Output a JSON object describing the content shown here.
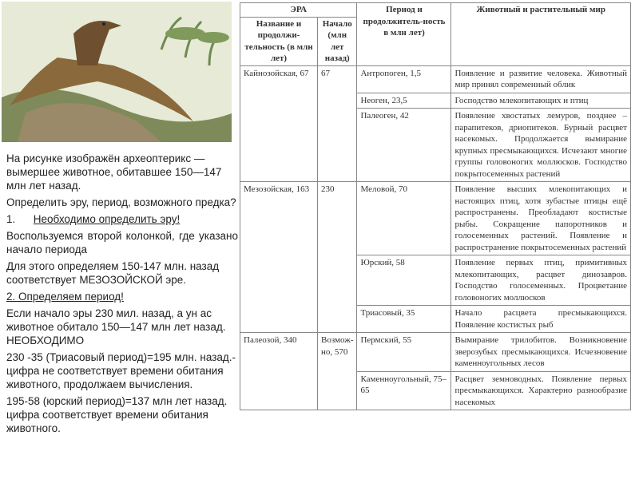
{
  "image": {
    "subject": "archaeopteryx illustration",
    "colors": {
      "sky": "#e8ecd8",
      "bird": "#8a6a3c",
      "rock": "#7f8a5a"
    }
  },
  "text": {
    "p1": "На рисунке изображён археоптерикс — вымершее животное, обитавшее 150—147 млн лет назад.",
    "p2": "Определить эру, период, возможного предка?",
    "step1_num": "1.",
    "step1": "Необходимо определить эру!",
    "p3": "Воспользуемся второй колонкой, где указано начало периода",
    "p4": "Для этого определяем 150-147 млн. назад соответствует МЕЗОЗОЙСКОЙ эре.",
    "step2": "2. Определяем период!",
    "p5": "Если начало эры 230 мил. назад, а ун ас животное обитало 150—147 млн лет назад. НЕОБХОДИМО",
    "p6": "230 -35 (Триасовый период)=195 млн. назад.-цифра не соответствует времени обитания животного, продолжаем вычисления.",
    "p7": "195-58 (юрский период)=137 млн лет назад. цифра соответствует времени обитания животного."
  },
  "table": {
    "headers": {
      "era": "ЭРА",
      "name": "Название и продолжи-тельность (в млн лет)",
      "start": "Начало (млн лет назад)",
      "period": "Период и продолжитель-ность в млн лет)",
      "life": "Животный и растительный мир"
    },
    "eras": [
      {
        "name": "Кайнозойская, 67",
        "start": "67",
        "periods": [
          {
            "period": "Антропоген, 1,5",
            "life": "Появление и развитие человека. Животный мир принял современный облик"
          },
          {
            "period": "Неоген, 23,5",
            "life": "Господство млекопитающих и птиц"
          },
          {
            "period": "Палеоген, 42",
            "life": "Появление хвостатых лемуров, позднее – парапитеков, дриопитеков. Бурный расцвет насекомых. Продолжается вымирание крупных пресмыкающихся. Исчезают многие группы головоногих моллюсков. Господство покрытосеменных растений"
          }
        ]
      },
      {
        "name": "Мезозойская, 163",
        "start": "230",
        "periods": [
          {
            "period": "Меловой, 70",
            "life": "Появление высших млекопитающих и настоящих птиц, хотя зубастые птицы ещё распространены. Преобладают костистые рыбы. Сокращение папоротников и голосеменных растений. Появление и распространение покрытосеменных растений"
          },
          {
            "period": "Юрский, 58",
            "life": "Появление первых птиц, примитивных млекопитающих, расцвет динозавров. Господство голосеменных. Процветание головоногих моллюсков"
          },
          {
            "period": "Триасовый, 35",
            "life": "Начало расцвета пресмыкающихся. Появление костистых рыб"
          }
        ]
      },
      {
        "name": "Палеозой, 340",
        "start": "Возмож-но, 570",
        "periods": [
          {
            "period": "Пермский, 55",
            "life": "Вымирание трилобитов. Возникновение зверозубых пресмыкающихся. Исчезновение каменноугольных лесов"
          },
          {
            "period": "Каменноугольный, 75–65",
            "life": "Расцвет земноводных. Появление первых пресмыкающихся. Характерно разнообразие насекомых"
          }
        ]
      }
    ]
  }
}
